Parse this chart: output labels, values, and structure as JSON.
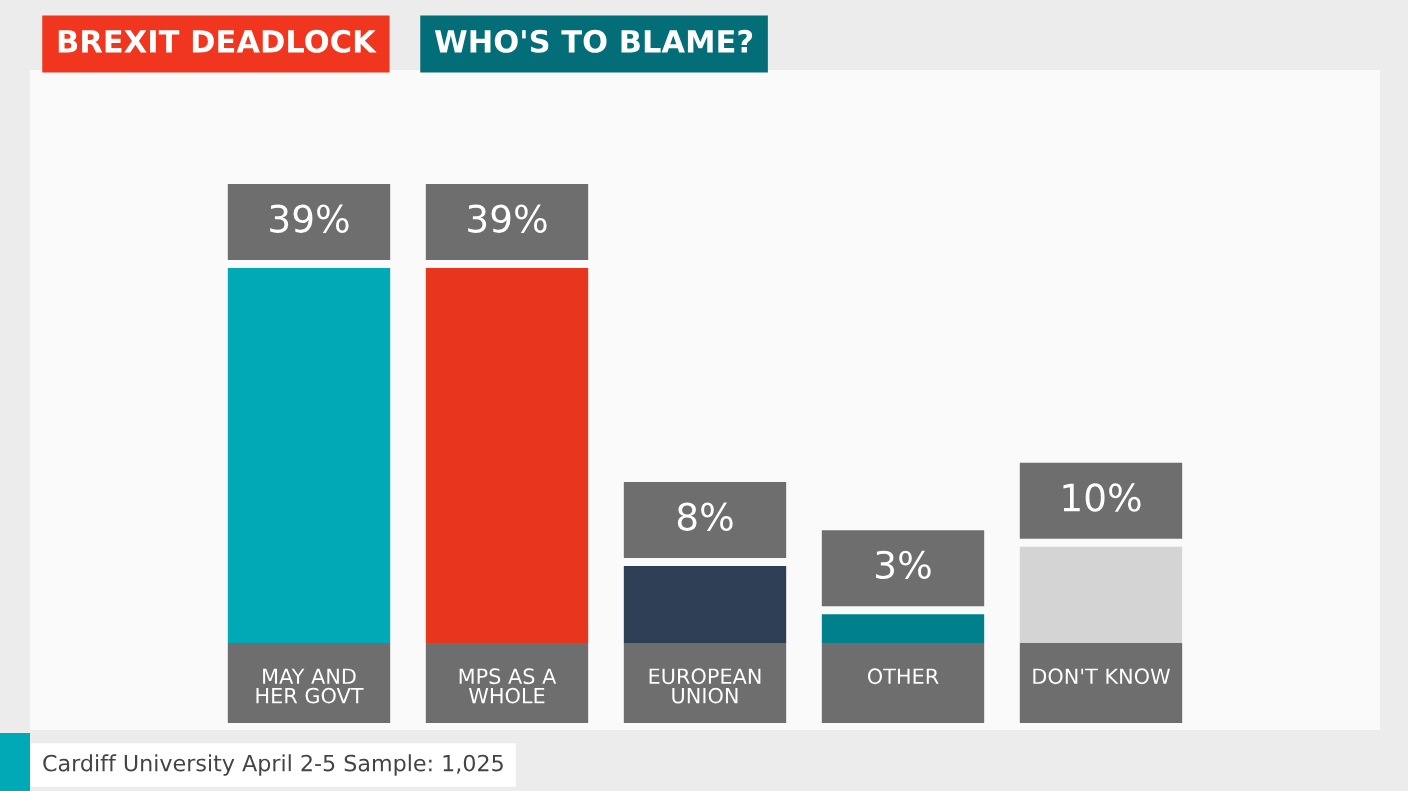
{
  "chart_data": {
    "type": "bar",
    "title": "BREXIT DEADLOCK",
    "subtitle": "WHO'S TO BLAME?",
    "categories": [
      "MAY AND\nHER GOVT",
      "MPS AS A\nWHOLE",
      "EUROPEAN\nUNION",
      "OTHER",
      "DON'T KNOW"
    ],
    "values": [
      39,
      39,
      8,
      3,
      10
    ],
    "colors": [
      "#00a9b5",
      "#e8361d",
      "#2e3f55",
      "#00808a",
      "#d4d4d4"
    ],
    "value_labels": [
      "39%",
      "39%",
      "8%",
      "3%",
      "10%"
    ],
    "annotations": [
      "Cardiff University April 2-5 Sample: 1,025"
    ]
  }
}
